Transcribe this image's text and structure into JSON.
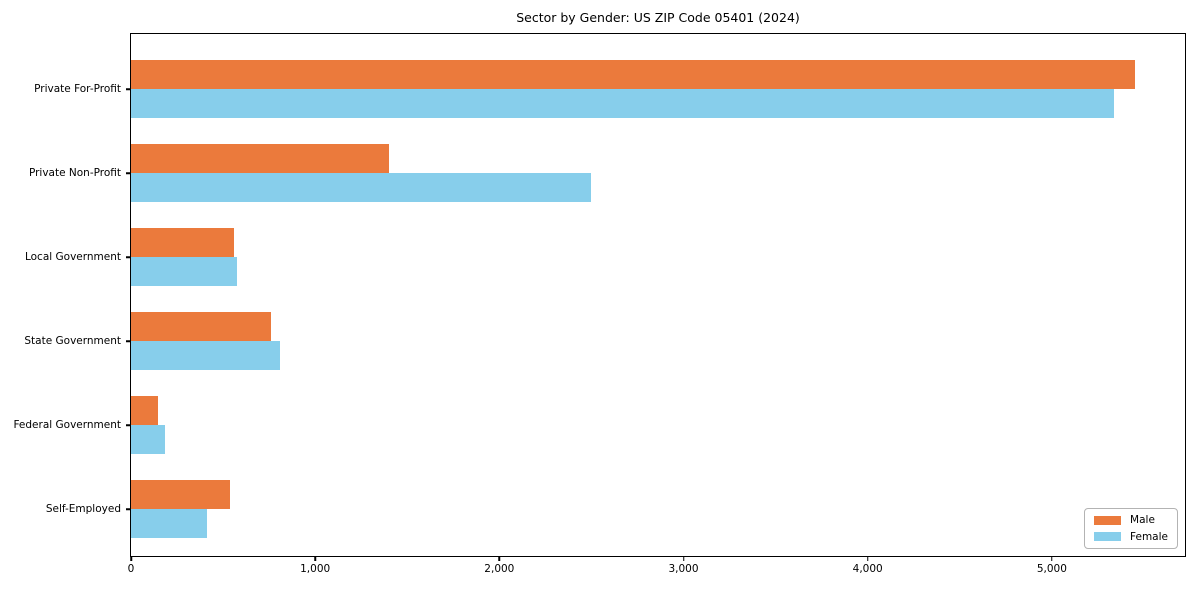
{
  "title": "Sector by Gender: US ZIP Code 05401 (2024)",
  "chart_data": {
    "type": "bar",
    "orientation": "horizontal",
    "title": "Sector by Gender: US ZIP Code 05401 (2024)",
    "categories": [
      "Private For-Profit",
      "Private Non-Profit",
      "Local Government",
      "State Government",
      "Federal Government",
      "Self-Employed"
    ],
    "series": [
      {
        "name": "Male",
        "color": "#EB7A3C",
        "values": [
          5450,
          1400,
          560,
          760,
          145,
          540
        ]
      },
      {
        "name": "Female",
        "color": "#87CEEB",
        "values": [
          5340,
          2500,
          575,
          810,
          185,
          415
        ]
      }
    ],
    "xlabel": "",
    "ylabel": "",
    "xlim": [
      0,
      5723
    ],
    "xticks": [
      0,
      1000,
      2000,
      3000,
      4000,
      5000
    ],
    "xtick_labels": [
      "0",
      "1,000",
      "2,000",
      "3,000",
      "4,000",
      "5,000"
    ],
    "grid": false,
    "legend": {
      "position": "lower right",
      "entries": [
        "Male",
        "Female"
      ]
    },
    "colors": {
      "background": "#ffffff",
      "spine": "#000000",
      "male": "#EB7A3C",
      "female": "#87CEEB"
    }
  }
}
